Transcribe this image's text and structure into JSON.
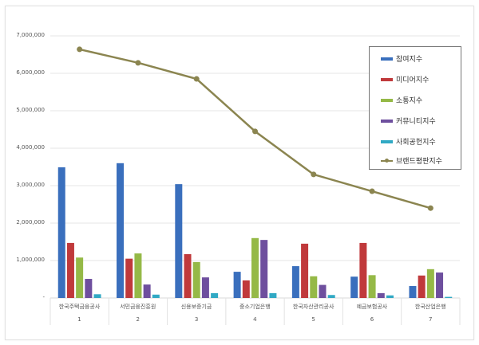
{
  "chart_data": {
    "type": "bar+line",
    "title": "",
    "xlabel": "",
    "ylabel": "",
    "ylim": [
      0,
      7000000
    ],
    "yticks": [
      "-",
      "1,000,000",
      "2,000,000",
      "3,000,000",
      "4,000,000",
      "5,000,000",
      "6,000,000",
      "7,000,000"
    ],
    "grid": true,
    "legend_position": "upper right",
    "categories": [
      "한국주택금융공사",
      "서민금융진흥원",
      "신용보증기금",
      "중소기업은행",
      "한국자산관리공사",
      "예금보험공사",
      "한국산업은행"
    ],
    "category_numbers": [
      "1",
      "2",
      "3",
      "4",
      "5",
      "6",
      "7"
    ],
    "series": [
      {
        "name": "참여지수",
        "type": "bar",
        "color": "#3a6fbd",
        "values": [
          3490000,
          3600000,
          3040000,
          700000,
          850000,
          570000,
          320000
        ]
      },
      {
        "name": "미디어지수",
        "type": "bar",
        "color": "#c0393b",
        "values": [
          1470000,
          1050000,
          1170000,
          470000,
          1450000,
          1470000,
          600000
        ]
      },
      {
        "name": "소통지수",
        "type": "bar",
        "color": "#95b947",
        "values": [
          1080000,
          1190000,
          960000,
          1600000,
          580000,
          610000,
          770000
        ]
      },
      {
        "name": "커뮤니티지수",
        "type": "bar",
        "color": "#6e4f9e",
        "values": [
          510000,
          360000,
          550000,
          1550000,
          350000,
          130000,
          680000
        ]
      },
      {
        "name": "사회공헌지수",
        "type": "bar",
        "color": "#31a9c4",
        "values": [
          100000,
          90000,
          130000,
          130000,
          80000,
          70000,
          30000
        ]
      },
      {
        "name": "브랜드평판지수",
        "type": "line",
        "color": "#8b8550",
        "values": [
          6640000,
          6280000,
          5850000,
          4450000,
          3300000,
          2850000,
          2400000
        ]
      }
    ]
  }
}
